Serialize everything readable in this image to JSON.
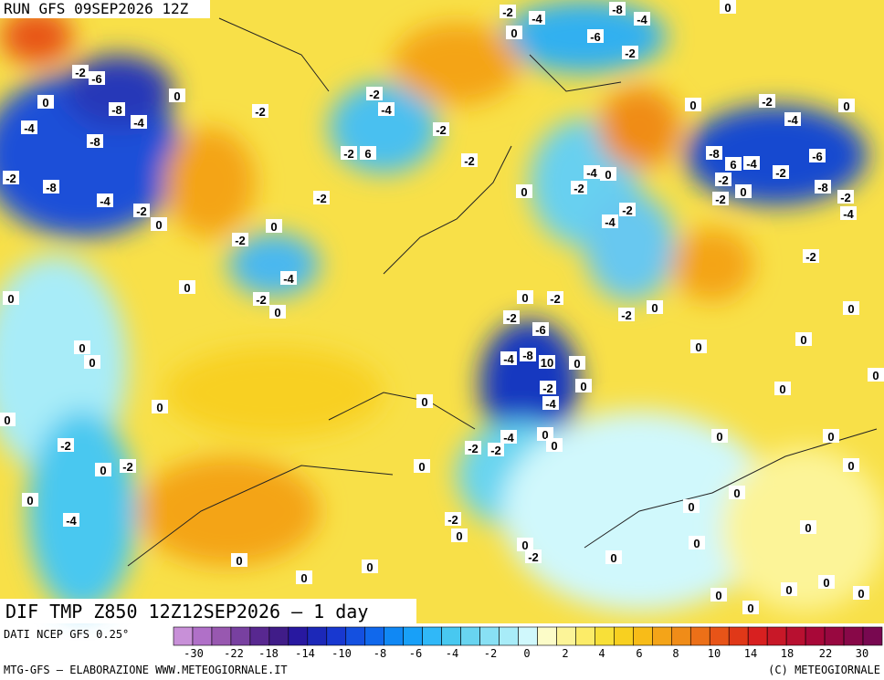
{
  "header": {
    "title": "RUN GFS 09SEP2026 12Z"
  },
  "map": {
    "title": "DIF TMP Z850 12Z12SEP2026 – 1 day",
    "labels": [
      "-2",
      "-4",
      "-8",
      "-4",
      "0",
      "-6",
      "-2",
      "0",
      "-2",
      "-6",
      "0",
      "0",
      "-8",
      "-4",
      "-4",
      "-8",
      "-2",
      "-8",
      "-4",
      "-2",
      "0",
      "0",
      "-2",
      "-4",
      "-2",
      "0",
      "0",
      "0",
      "0",
      "0",
      "0",
      "0",
      "-2",
      "-2",
      "0",
      "0",
      "-4",
      "0",
      "0",
      "0",
      "-2",
      "-4",
      "-2",
      "-2",
      "-2",
      "6",
      "-2",
      "-2",
      "0",
      "-4",
      "0",
      "-2",
      "-2",
      "-4",
      "0",
      "-2",
      "-4",
      "0",
      "-8",
      "6",
      "-4",
      "-2",
      "-6",
      "-2",
      "-2",
      "0",
      "-8",
      "-2",
      "-4",
      "-2",
      "0",
      "-2",
      "0",
      "-2",
      "-2",
      "-6",
      "-8",
      "-4",
      "10",
      "0",
      "0",
      "0",
      "0",
      "0",
      "-2",
      "-4",
      "0",
      "0",
      "0",
      "-4",
      "-2",
      "-2",
      "0",
      "0",
      "0",
      "0",
      "0",
      "0",
      "0",
      "0",
      "-2",
      "0",
      "0",
      "-2",
      "0",
      "0",
      "0",
      "0",
      "0",
      "0",
      "0",
      "0"
    ]
  },
  "legend": {
    "source": "DATI NCEP GFS 0.25°",
    "colors": [
      "#c890d8",
      "#b070c8",
      "#9858b0",
      "#7840a0",
      "#582890",
      "#401c88",
      "#2818a0",
      "#1c28b8",
      "#1838d0",
      "#1450e0",
      "#1068ec",
      "#1088f4",
      "#18a0f8",
      "#30b8f8",
      "#48c8f0",
      "#68d4f0",
      "#88e0f4",
      "#a8ecf8",
      "#d0f8fc",
      "#fcfcc8",
      "#fcf498",
      "#fcec68",
      "#f8e038",
      "#f8d020",
      "#f8bc18",
      "#f4a418",
      "#f08c18",
      "#ec7018",
      "#e85418",
      "#e03818",
      "#d82020",
      "#c81828",
      "#b81030",
      "#a80838",
      "#980840",
      "#880848",
      "#780850"
    ],
    "ticks": [
      "-30",
      "-22",
      "-18",
      "-14",
      "-10",
      "-8",
      "-6",
      "-4",
      "-2",
      "0",
      "2",
      "4",
      "6",
      "8",
      "10",
      "14",
      "18",
      "22",
      "30"
    ]
  },
  "footer": {
    "credit": "MTG-GFS – ELABORAZIONE WWW.METEOGIORNALE.IT",
    "copyright": "(C) METEOGIORNALE"
  }
}
